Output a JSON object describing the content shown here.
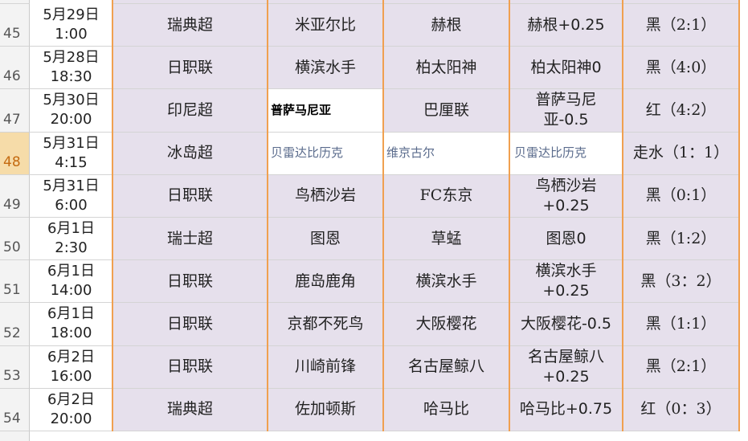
{
  "rows": [
    {
      "row": "45",
      "date": "5月29日",
      "time": "1:00",
      "league": "瑞典超",
      "home": "米亚尔比",
      "away": "赫根",
      "handicap": "赫根+0.25",
      "result": "黑（2:1）"
    },
    {
      "row": "46",
      "date": "5月28日",
      "time": "18:30",
      "league": "日职联",
      "home": "横滨水手",
      "away": "柏太阳神",
      "handicap": "柏太阳神0",
      "result": "黑（4:0）"
    },
    {
      "row": "47",
      "date": "5月30日",
      "time": "20:00",
      "league": "印尼超",
      "home": "普萨马尼亚",
      "away": "巴厘联",
      "handicap": "普萨马尼亚-0.5",
      "result": "红（4:2）"
    },
    {
      "row": "48",
      "date": "5月31日",
      "time": "4:15",
      "league": "冰岛超",
      "home": "贝雷达比历克",
      "away": "维京古尔",
      "handicap": "贝雷达比历克",
      "result": "走水（1：1）"
    },
    {
      "row": "49",
      "date": "5月31日",
      "time": "6:00",
      "league": "日职联",
      "home": "鸟栖沙岩",
      "away": "FC东京",
      "handicap": "鸟栖沙岩+0.25",
      "result": "黑（0:1）"
    },
    {
      "row": "50",
      "date": "6月1日",
      "time": "2:30",
      "league": "瑞士超",
      "home": "图恩",
      "away": "草蜢",
      "handicap": "图恩0",
      "result": "黑（1:2）"
    },
    {
      "row": "51",
      "date": "6月1日",
      "time": "14:00",
      "league": "日职联",
      "home": "鹿岛鹿角",
      "away": "横滨水手",
      "handicap": "横滨水手+0.25",
      "result": "黑（3：2）"
    },
    {
      "row": "52",
      "date": "6月1日",
      "time": "18:00",
      "league": "日职联",
      "home": "京都不死鸟",
      "away": "大阪樱花",
      "handicap": "大阪樱花-0.5",
      "result": "黑（1:1）"
    },
    {
      "row": "53",
      "date": "6月2日",
      "time": "16:00",
      "league": "日职联",
      "home": "川崎前锋",
      "away": "名古屋鲸八",
      "handicap": "名古屋鲸八+0.25",
      "result": "黑（2:1）"
    },
    {
      "row": "54",
      "date": "6月2日",
      "time": "20:00",
      "league": "瑞典超",
      "home": "佐加顿斯",
      "away": "哈马比",
      "handicap": "哈马比+0.75",
      "result": "红（0：3）"
    }
  ]
}
